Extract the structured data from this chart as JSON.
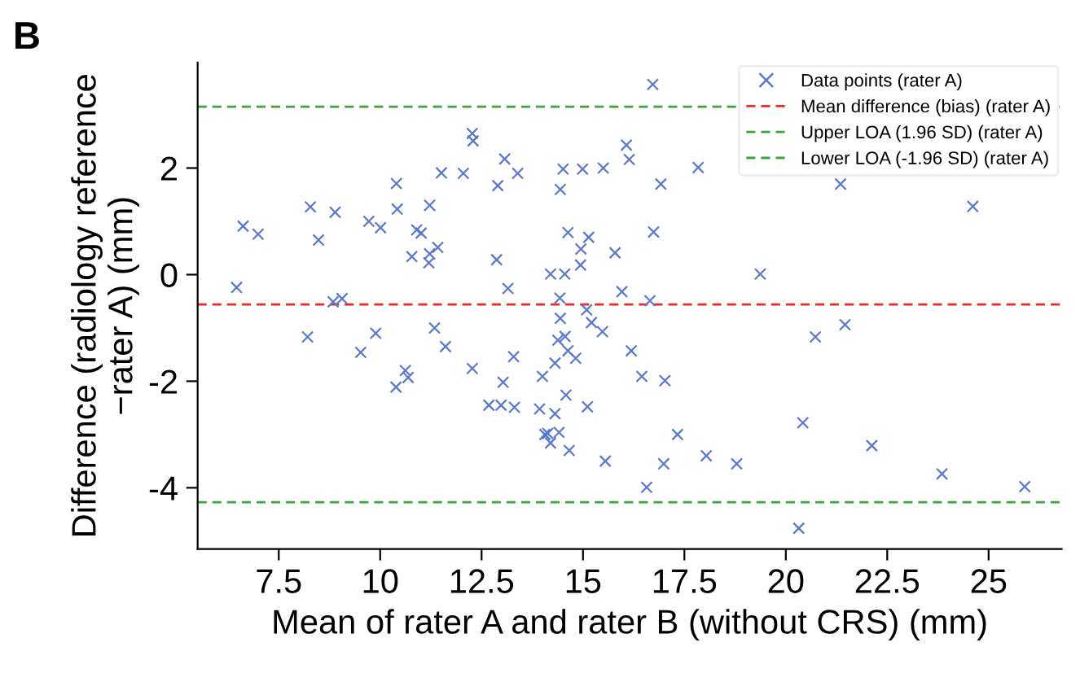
{
  "chart_data": {
    "type": "scatter",
    "title": "B",
    "xlabel": "Mean of rater A and rater B (without CRS) (mm)",
    "ylabel": "Difference (radiology reference\n−rater A) (mm)",
    "series": [
      {
        "name": "Data points (rater A)",
        "color": "#5a78cc",
        "marker": "cross",
        "x": [
          6.46,
          6.62,
          6.99,
          8.21,
          8.28,
          8.48,
          8.84,
          8.89,
          9.06,
          9.52,
          9.72,
          9.89,
          10.01,
          10.39,
          10.4,
          10.42,
          10.62,
          10.69,
          10.78,
          10.9,
          11.01,
          11.22,
          11.22,
          11.2,
          11.34,
          11.42,
          11.51,
          11.61,
          12.05,
          12.27,
          12.29,
          12.27,
          12.68,
          12.87,
          12.9,
          12.98,
          13.03,
          13.07,
          13.15,
          13.29,
          13.31,
          13.39,
          13.93,
          14.0,
          14.06,
          14.13,
          14.2,
          14.2,
          14.31,
          14.31,
          14.38,
          14.41,
          14.43,
          14.44,
          14.44,
          14.51,
          14.55,
          14.56,
          14.58,
          14.63,
          14.63,
          14.66,
          14.82,
          14.94,
          14.95,
          14.99,
          15.09,
          15.14,
          15.11,
          15.21,
          15.48,
          15.5,
          15.55,
          15.79,
          15.96,
          16.07,
          16.14,
          16.19,
          16.45,
          16.57,
          16.65,
          16.72,
          16.74,
          16.92,
          16.99,
          17.02,
          17.33,
          17.84,
          18.04,
          18.79,
          19.37,
          20.32,
          20.42,
          20.73,
          21.35,
          21.46,
          22.12,
          23.85,
          24.61,
          25.89
        ],
        "values": [
          -0.24,
          0.91,
          0.76,
          -1.17,
          1.27,
          0.65,
          -0.51,
          1.17,
          -0.45,
          -1.46,
          1.0,
          -1.1,
          0.88,
          -2.11,
          1.71,
          1.23,
          -1.8,
          -1.93,
          0.34,
          0.84,
          0.78,
          1.3,
          0.39,
          0.22,
          -1.0,
          0.51,
          1.91,
          -1.35,
          1.9,
          2.65,
          2.51,
          -1.76,
          -2.45,
          0.28,
          1.67,
          -2.45,
          -2.02,
          2.17,
          -0.26,
          -1.54,
          -2.49,
          1.9,
          -2.52,
          -1.91,
          -3.0,
          -2.98,
          -3.16,
          0.01,
          -2.61,
          -1.66,
          -1.23,
          -2.96,
          -0.44,
          -0.82,
          1.6,
          1.98,
          0.01,
          -1.16,
          -2.26,
          -1.43,
          0.79,
          -3.3,
          -1.57,
          0.18,
          0.48,
          1.98,
          -0.66,
          0.7,
          -2.48,
          -0.9,
          -1.07,
          2.0,
          -3.5,
          0.41,
          -0.32,
          2.43,
          2.16,
          -1.43,
          -1.91,
          -3.99,
          -0.49,
          3.57,
          0.8,
          1.7,
          -3.55,
          -1.99,
          -3.0,
          2.01,
          -3.4,
          -3.55,
          0.01,
          -4.76,
          -2.78,
          -1.17,
          1.7,
          -0.94,
          -3.21,
          -3.74,
          1.28,
          -3.98
        ]
      }
    ],
    "ref_lines": [
      {
        "axis": "y",
        "value": -0.56,
        "label": "Mean difference (bias) (rater A)",
        "color": "#ee2a2a",
        "line_style": "dashed"
      },
      {
        "axis": "y",
        "value": 3.15,
        "label": "Upper LOA (1.96 SD) (rater A)",
        "color": "#3aa53a",
        "line_style": "dashed"
      },
      {
        "axis": "y",
        "value": -4.27,
        "label": "Lower LOA (-1.96 SD) (rater A)",
        "color": "#3aa53a",
        "line_style": "dashed"
      }
    ],
    "xlim": [
      5.5,
      26.8
    ],
    "ylim": [
      -5.15,
      3.98
    ],
    "xticks": [
      7.5,
      10,
      12.5,
      15,
      17.5,
      20,
      22.5,
      25
    ],
    "yticks": [
      -4,
      -2,
      0,
      2
    ],
    "grid": false,
    "legend": "top right"
  }
}
